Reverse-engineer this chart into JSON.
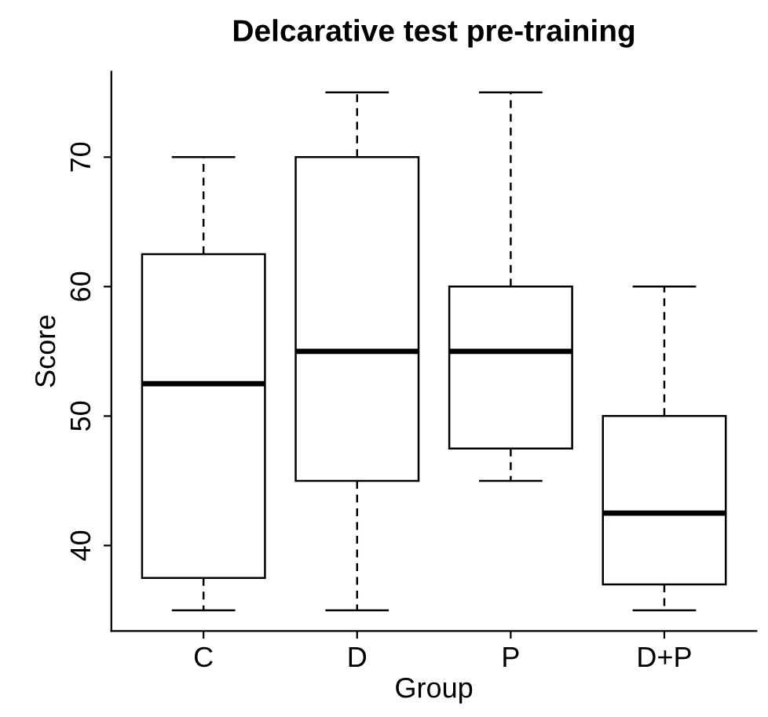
{
  "chart_data": {
    "type": "box",
    "title": "Delcarative test pre-training",
    "xlabel": "Group",
    "ylabel": "Score",
    "categories": [
      "C",
      "D",
      "P",
      "D+P"
    ],
    "boxes": [
      {
        "low": 35,
        "q1": 37.5,
        "median": 52.5,
        "q3": 62.5,
        "high": 70
      },
      {
        "low": 35,
        "q1": 45,
        "median": 55,
        "q3": 70,
        "high": 75
      },
      {
        "low": 45,
        "q1": 47.5,
        "median": 55,
        "q3": 60,
        "high": 75
      },
      {
        "low": 35,
        "q1": 37,
        "median": 42.5,
        "q3": 50,
        "high": 60
      }
    ],
    "color": "#ffffff",
    "ylim": [
      33.4,
      76.6
    ],
    "yticks": [
      40,
      50,
      60,
      70
    ],
    "grid": false,
    "legend": false
  }
}
